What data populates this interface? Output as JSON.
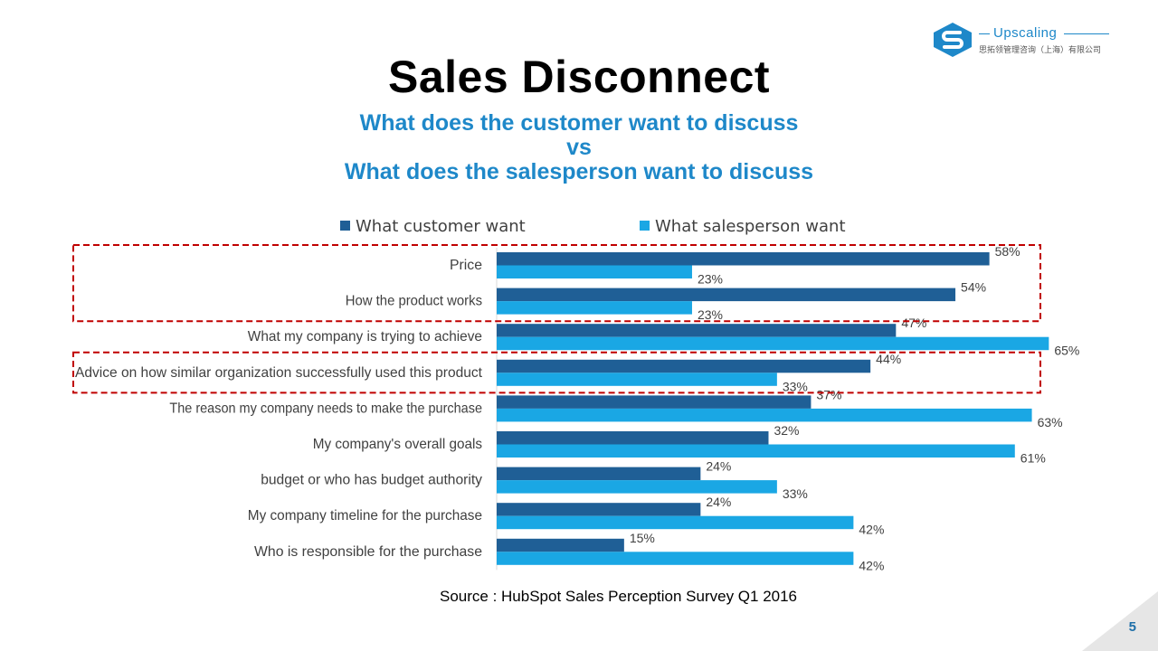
{
  "slide": {
    "title": "Sales Disconnect",
    "subtitle_lines": [
      "What does the customer want to discuss",
      "vs",
      "What does the salesperson want to discuss"
    ],
    "source": "Source : HubSpot Sales Perception Survey Q1 2016",
    "page_number": "5"
  },
  "logo": {
    "name": "Upscaling",
    "subtitle": "思拓领管理咨询（上海）有限公司",
    "icon": "upscaling-s-logo-icon"
  },
  "chart_data": {
    "type": "bar",
    "orientation": "horizontal",
    "categories": [
      "Price",
      "How the product works",
      "What my company is trying to achieve",
      "Advice on how similar organization successfully used this product",
      "The reason my company needs to make the purchase",
      "My company's overall goals",
      "budget or who has budget authority",
      "My company timeline for the purchase",
      "Who is responsible for the purchase"
    ],
    "series": [
      {
        "name": "What customer want",
        "color": "#1f5f96",
        "values": [
          58,
          54,
          47,
          44,
          37,
          32,
          24,
          24,
          15
        ]
      },
      {
        "name": "What salesperson want",
        "color": "#1aa7e4",
        "values": [
          23,
          23,
          65,
          33,
          63,
          61,
          33,
          42,
          42
        ]
      }
    ],
    "data_labels": [
      [
        "58%",
        "54%",
        "47%",
        "44%",
        "37%",
        "32%",
        "24%",
        "24%",
        "15%"
      ],
      [
        "23%",
        "23%",
        "65%",
        "33%",
        "63%",
        "61%",
        "33%",
        "42%",
        "42%"
      ]
    ],
    "value_unit": "%",
    "legend_position": "top",
    "grid": false,
    "highlight_boxes": [
      {
        "categories": [
          "Price",
          "How the product works"
        ],
        "style": "dashed",
        "color": "#c00000"
      },
      {
        "categories": [
          "Advice on how similar organization successfully used this product"
        ],
        "style": "dashed",
        "color": "#c00000"
      }
    ]
  }
}
